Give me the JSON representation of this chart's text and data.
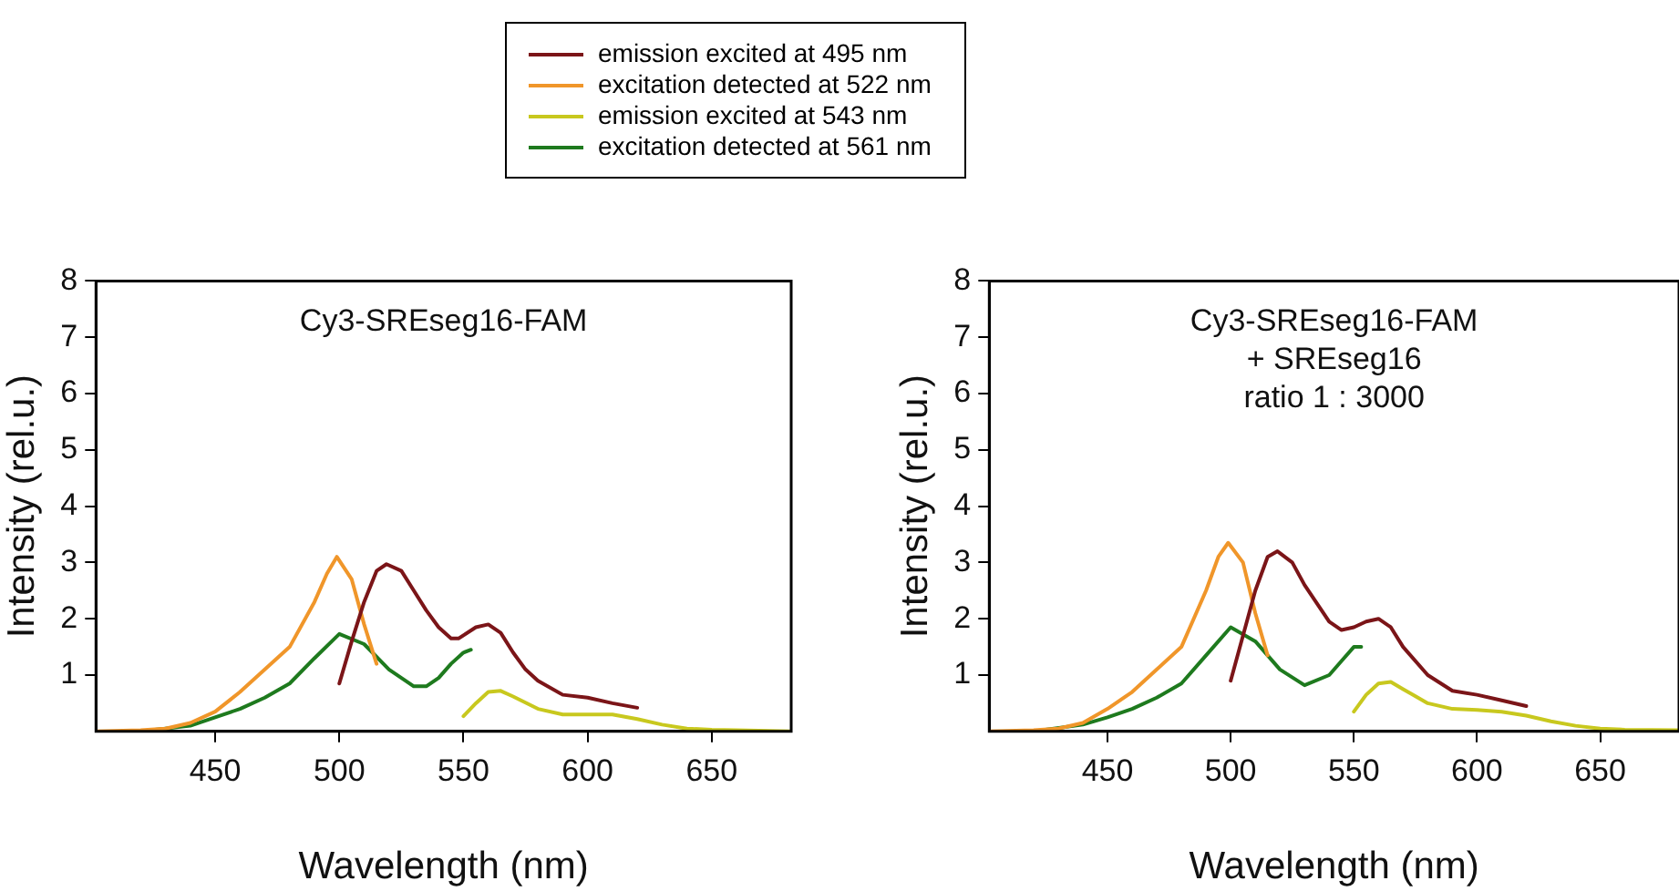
{
  "chart_data": [
    {
      "type": "line",
      "title": "Cy3-SREseg16-FAM",
      "xlabel": "Wavelength (nm)",
      "ylabel": "Intensity (rel.u.)",
      "xlim": [
        402,
        682
      ],
      "xticks": [
        450,
        500,
        550,
        600,
        650
      ],
      "ylim": [
        0,
        8
      ],
      "yticks": [
        1,
        2,
        3,
        4,
        5,
        6,
        7,
        8
      ],
      "grid": false,
      "legend": "top",
      "marker": "none",
      "line_style": "solid",
      "series": [
        {
          "name": "emission excited at 495 nm",
          "color": "#7b1518",
          "x": [
            500,
            505,
            510,
            515,
            519,
            525,
            530,
            535,
            540,
            545,
            548,
            555,
            560,
            565,
            570,
            575,
            580,
            590,
            600,
            610,
            620
          ],
          "values": [
            0.85,
            1.6,
            2.3,
            2.85,
            2.97,
            2.85,
            2.5,
            2.15,
            1.85,
            1.65,
            1.65,
            1.85,
            1.9,
            1.75,
            1.4,
            1.1,
            0.9,
            0.65,
            0.6,
            0.5,
            0.42
          ]
        },
        {
          "name": "excitation detected at 522 nm",
          "color": "#f0962a",
          "x": [
            402,
            420,
            430,
            440,
            450,
            460,
            470,
            480,
            490,
            495,
            499,
            505,
            510,
            515
          ],
          "values": [
            0,
            0.02,
            0.05,
            0.15,
            0.35,
            0.7,
            1.1,
            1.5,
            2.3,
            2.8,
            3.1,
            2.7,
            1.9,
            1.2
          ]
        },
        {
          "name": "emission excited at 543 nm",
          "color": "#c8c81e",
          "x": [
            550,
            555,
            560,
            565,
            570,
            580,
            590,
            600,
            610,
            620,
            630,
            640,
            650,
            660,
            682
          ],
          "values": [
            0.27,
            0.5,
            0.7,
            0.72,
            0.62,
            0.4,
            0.3,
            0.3,
            0.3,
            0.22,
            0.12,
            0.05,
            0.03,
            0.02,
            0
          ]
        },
        {
          "name": "excitation detected at 561 nm",
          "color": "#1e7a1e",
          "x": [
            420,
            440,
            450,
            460,
            470,
            480,
            490,
            500,
            510,
            520,
            530,
            535,
            540,
            545,
            550,
            553
          ],
          "values": [
            0,
            0.1,
            0.25,
            0.4,
            0.6,
            0.85,
            1.3,
            1.73,
            1.55,
            1.1,
            0.8,
            0.8,
            0.95,
            1.2,
            1.4,
            1.45
          ]
        }
      ]
    },
    {
      "type": "line",
      "title": "Cy3-SREseg16-FAM\n+ SREseg16\nratio 1 : 3000",
      "xlabel": "Wavelength (nm)",
      "ylabel": "Intensity (rel.u.)",
      "xlim": [
        402,
        682
      ],
      "xticks": [
        450,
        500,
        550,
        600,
        650
      ],
      "ylim": [
        0,
        8
      ],
      "yticks": [
        1,
        2,
        3,
        4,
        5,
        6,
        7,
        8
      ],
      "grid": false,
      "marker": "none",
      "line_style": "solid",
      "series": [
        {
          "color": "#7b1518",
          "x": [
            500,
            505,
            510,
            515,
            519,
            525,
            530,
            540,
            545,
            550,
            555,
            560,
            565,
            570,
            580,
            590,
            600,
            610,
            620
          ],
          "values": [
            0.9,
            1.7,
            2.5,
            3.1,
            3.2,
            3.0,
            2.6,
            1.95,
            1.8,
            1.85,
            1.95,
            2.0,
            1.85,
            1.5,
            1.0,
            0.72,
            0.65,
            0.55,
            0.45
          ]
        },
        {
          "color": "#f0962a",
          "x": [
            402,
            420,
            430,
            440,
            450,
            460,
            470,
            480,
            490,
            495,
            499,
            505,
            510,
            515
          ],
          "values": [
            0,
            0.02,
            0.05,
            0.15,
            0.4,
            0.7,
            1.1,
            1.5,
            2.5,
            3.1,
            3.35,
            3.0,
            2.1,
            1.35
          ]
        },
        {
          "color": "#c8c81e",
          "x": [
            550,
            555,
            560,
            565,
            570,
            580,
            590,
            600,
            610,
            620,
            630,
            640,
            650,
            660,
            682
          ],
          "values": [
            0.35,
            0.65,
            0.85,
            0.88,
            0.75,
            0.5,
            0.4,
            0.38,
            0.35,
            0.28,
            0.18,
            0.1,
            0.05,
            0.03,
            0.02
          ]
        },
        {
          "color": "#1e7a1e",
          "x": [
            420,
            440,
            450,
            460,
            470,
            480,
            490,
            500,
            510,
            520,
            530,
            540,
            545,
            550,
            553
          ],
          "values": [
            0,
            0.12,
            0.25,
            0.4,
            0.6,
            0.85,
            1.35,
            1.85,
            1.6,
            1.1,
            0.82,
            1.0,
            1.25,
            1.5,
            1.5
          ]
        }
      ]
    }
  ]
}
